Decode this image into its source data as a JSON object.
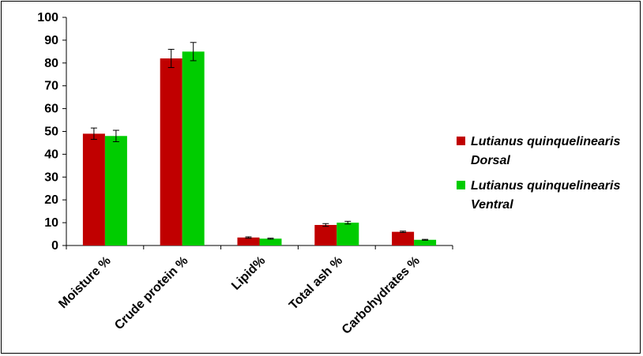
{
  "chart_data": {
    "type": "bar",
    "title": "",
    "xlabel": "",
    "ylabel": "",
    "ylim": [
      0,
      100
    ],
    "yticks": [
      0,
      10,
      20,
      30,
      40,
      50,
      60,
      70,
      80,
      90,
      100
    ],
    "categories": [
      "Moisture %",
      "Crude protein %",
      "Lipid%",
      "Total ash %",
      "Carbohydrates %"
    ],
    "series": [
      {
        "name": "Lutianus quinquelinearis Dorsal",
        "legend_lines": [
          "Lutianus quinquelinearis",
          "Dorsal"
        ],
        "color": "#c00000",
        "values": [
          49,
          82,
          3.5,
          9,
          6
        ],
        "errors": [
          2.5,
          4,
          0.3,
          0.6,
          0.3
        ]
      },
      {
        "name": "Lutianus quinquelinearis Ventral",
        "legend_lines": [
          "Lutianus quinquelinearis",
          "Ventral"
        ],
        "color": "#00cc00",
        "values": [
          48,
          85,
          3,
          10,
          2.5
        ],
        "errors": [
          2.5,
          4,
          0.2,
          0.6,
          0.2
        ]
      }
    ],
    "grid": false,
    "legend_position": "right"
  }
}
